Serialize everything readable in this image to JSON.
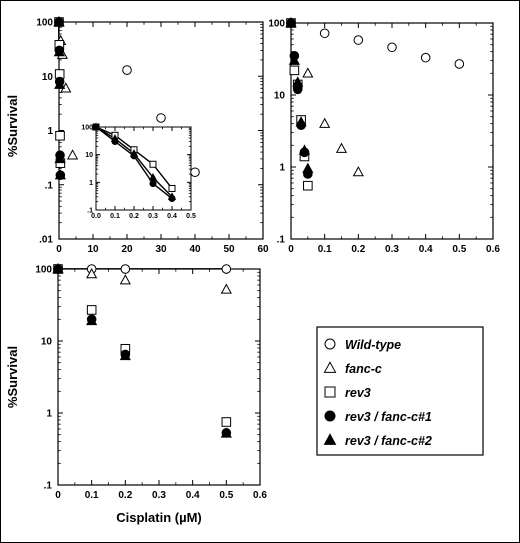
{
  "chart_data": [
    {
      "id": "top-left",
      "type": "line",
      "y_scale": "log",
      "xlim": [
        0,
        60
      ],
      "ylim": [
        0.01,
        100
      ],
      "x_ticks": [
        "0",
        "10",
        "20",
        "30",
        "40",
        "50",
        "60"
      ],
      "y_ticks": [
        ".01",
        ".1",
        "1",
        "10",
        "100"
      ],
      "ylabel": "%Survival",
      "series": [
        {
          "key": "wt",
          "marker": "circle-open",
          "x": [
            0,
            20,
            30,
            40
          ],
          "y": [
            100,
            13,
            1.7,
            0.17
          ]
        },
        {
          "key": "fancc",
          "marker": "triangle-open",
          "x": [
            0,
            0.5,
            1,
            2,
            4
          ],
          "y": [
            100,
            45,
            25,
            6,
            0.35
          ]
        },
        {
          "key": "rev3",
          "marker": "square-open",
          "x": [
            0,
            0.1,
            0.2,
            0.3,
            0.4
          ],
          "y": [
            100,
            38,
            11,
            0.8,
            0.25
          ]
        },
        {
          "key": "rf1",
          "marker": "circle-filled",
          "x": [
            0,
            0.1,
            0.2,
            0.3,
            0.4
          ],
          "y": [
            100,
            30,
            8,
            0.35,
            0.15
          ]
        },
        {
          "key": "rf2",
          "marker": "triangle-filled",
          "x": [
            0,
            0.1,
            0.2,
            0.3,
            0.4
          ],
          "y": [
            100,
            28,
            7,
            0.3,
            0.15
          ]
        }
      ]
    },
    {
      "id": "inset",
      "type": "line",
      "y_scale": "log",
      "xlim": [
        0,
        0.5
      ],
      "ylim": [
        0.1,
        100
      ],
      "x_ticks": [
        "0.0",
        "0.1",
        "0.2",
        "0.3",
        "0.4",
        "0.5"
      ],
      "y_ticks": [
        ".1",
        "1",
        "10",
        "100"
      ],
      "series": [
        {
          "key": "rev3",
          "marker": "square-open",
          "x": [
            0,
            0.1,
            0.2,
            0.3,
            0.4
          ],
          "y": [
            100,
            50,
            15,
            4.5,
            0.6
          ]
        },
        {
          "key": "rf1",
          "marker": "circle-filled",
          "x": [
            0,
            0.1,
            0.2,
            0.3,
            0.4
          ],
          "y": [
            100,
            30,
            9,
            0.9,
            0.26
          ]
        },
        {
          "key": "rf2",
          "marker": "triangle-filled",
          "x": [
            0,
            0.1,
            0.2,
            0.3,
            0.4
          ],
          "y": [
            100,
            38,
            11,
            1.5,
            0.3
          ]
        }
      ]
    },
    {
      "id": "top-right",
      "type": "line",
      "y_scale": "log",
      "xlim": [
        0,
        0.6
      ],
      "ylim": [
        0.1,
        100
      ],
      "x_ticks": [
        "0",
        "0.1",
        "0.2",
        "0.3",
        "0.4",
        "0.5",
        "0.6"
      ],
      "y_ticks": [
        ".1",
        "1",
        "10",
        "100"
      ],
      "series": [
        {
          "key": "wt",
          "marker": "circle-open",
          "x": [
            0,
            0.1,
            0.2,
            0.3,
            0.4,
            0.5
          ],
          "y": [
            100,
            72,
            58,
            46,
            33,
            27
          ]
        },
        {
          "key": "fancc",
          "marker": "triangle-open",
          "x": [
            0,
            0.05,
            0.1,
            0.15,
            0.2
          ],
          "y": [
            100,
            20,
            4,
            1.8,
            0.85
          ]
        },
        {
          "key": "rev3",
          "marker": "square-open",
          "x": [
            0,
            0.01,
            0.02,
            0.03,
            0.04,
            0.05
          ],
          "y": [
            100,
            22,
            14,
            4.5,
            1.4,
            0.55
          ]
        },
        {
          "key": "rf1",
          "marker": "circle-filled",
          "x": [
            0,
            0.01,
            0.02,
            0.03,
            0.04,
            0.05
          ],
          "y": [
            100,
            35,
            12,
            3.8,
            1.6,
            0.8
          ]
        },
        {
          "key": "rf2",
          "marker": "triangle-filled",
          "x": [
            0,
            0.01,
            0.02,
            0.03,
            0.04,
            0.05
          ],
          "y": [
            100,
            30,
            15,
            4.2,
            1.7,
            0.95
          ]
        }
      ]
    },
    {
      "id": "bottom",
      "type": "line",
      "y_scale": "log",
      "xlim": [
        0,
        0.6
      ],
      "ylim": [
        0.1,
        100
      ],
      "x_ticks": [
        "0",
        "0.1",
        "0.2",
        "0.3",
        "0.4",
        "0.5",
        "0.6"
      ],
      "y_ticks": [
        ".1",
        "1",
        "10",
        "100"
      ],
      "xlabel": "Cisplatin (µM)",
      "ylabel": "%Survival",
      "series": [
        {
          "key": "wt",
          "marker": "circle-open",
          "x": [
            0,
            0.1,
            0.2,
            0.5
          ],
          "y": [
            100,
            100,
            100,
            100
          ]
        },
        {
          "key": "fancc",
          "marker": "triangle-open",
          "x": [
            0,
            0.1,
            0.2,
            0.5
          ],
          "y": [
            100,
            85,
            70,
            52
          ]
        },
        {
          "key": "rev3",
          "marker": "square-open",
          "x": [
            0,
            0.1,
            0.2,
            0.5
          ],
          "y": [
            100,
            27,
            7.8,
            0.75
          ]
        },
        {
          "key": "rf1",
          "marker": "circle-filled",
          "x": [
            0,
            0.1,
            0.2,
            0.5
          ],
          "y": [
            100,
            20,
            6.5,
            0.53
          ]
        },
        {
          "key": "rf2",
          "marker": "triangle-filled",
          "x": [
            0,
            0.1,
            0.2,
            0.5
          ],
          "y": [
            100,
            19,
            6.2,
            0.52
          ]
        }
      ]
    }
  ],
  "legend": {
    "placement": "right of bottom panel",
    "items": [
      {
        "key": "wt",
        "marker": "circle-open",
        "label": "Wild-type"
      },
      {
        "key": "fancc",
        "marker": "triangle-open",
        "label": "fanc-c"
      },
      {
        "key": "rev3",
        "marker": "square-open",
        "label": "rev3"
      },
      {
        "key": "rf1",
        "marker": "circle-filled",
        "label": "rev3 / fanc-c#1"
      },
      {
        "key": "rf2",
        "marker": "triangle-filled",
        "label": "rev3 / fanc-c#2"
      }
    ]
  },
  "colors": {
    "ink": "#000000",
    "background": "#ffffff"
  }
}
